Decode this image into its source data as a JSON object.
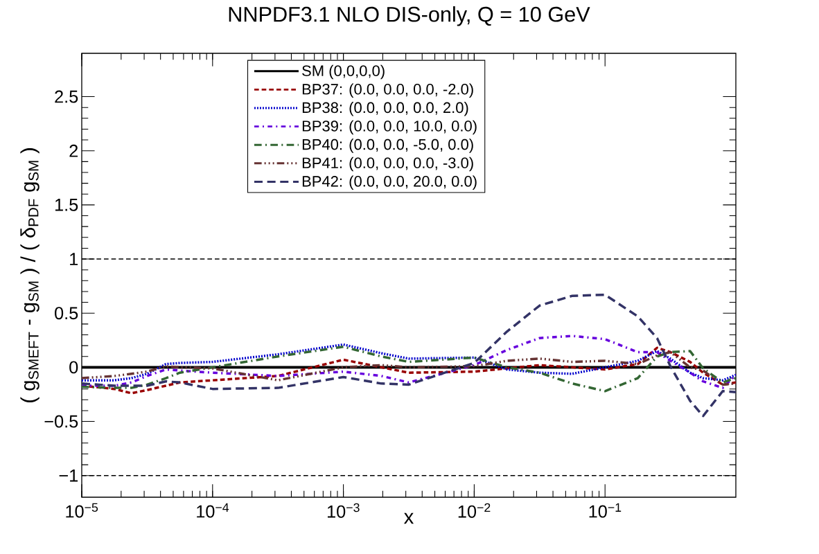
{
  "chart_data": {
    "type": "line",
    "title": "NNPDF3.1 NLO DIS-only, Q = 10 GeV",
    "xlabel": "x",
    "ylabel": "( g$_{SMEFT}$ - g$_{SM}$ ) / ( δ$_{PDF}$ g$_{SM}$ )",
    "log": "x",
    "xlim": [
      1e-05,
      1
    ],
    "ylim": [
      -1.2,
      2.9
    ],
    "xticks": [
      {
        "value": 1e-05,
        "label": "10$^{−5}$"
      },
      {
        "value": 0.0001,
        "label": "10$^{−4}$"
      },
      {
        "value": 0.001,
        "label": "10$^{−3}$"
      },
      {
        "value": 0.01,
        "label": "10$^{−2}$"
      },
      {
        "value": 0.1,
        "label": "10$^{−1}$"
      }
    ],
    "yticks": [
      {
        "value": -1,
        "label": "−1"
      },
      {
        "value": -0.5,
        "label": "−0.5"
      },
      0,
      0.5,
      1,
      1.5,
      2,
      2.5
    ],
    "grid": false,
    "legend": "top",
    "marker": "none",
    "x": [
      1e-05,
      1.78e-05,
      2.4e-05,
      3.16e-05,
      4.4e-05,
      5.62e-05,
      0.0001,
      0.000316,
      0.001,
      0.00195,
      0.00316,
      0.01,
      0.0178,
      0.0316,
      0.0562,
      0.1,
      0.178,
      0.25,
      0.316,
      0.447,
      0.562,
      0.794,
      1.0
    ],
    "ref_lines": [
      {
        "axis": "y",
        "value": 1,
        "color": "#000000",
        "line_style": "dashed"
      },
      {
        "axis": "y",
        "value": -1,
        "color": "#000000",
        "line_style": "dashed"
      }
    ],
    "series": [
      {
        "name": "SM (0,0,0,0)",
        "color": "#000000",
        "line_style": "solid",
        "x": [
          1e-05,
          1.0
        ],
        "values": [
          0,
          0
        ]
      },
      {
        "name": "BP37: (0.0, 0.0, 0.0, -2.0)",
        "color": "#990000",
        "line_style": "dashed",
        "values": [
          -0.17,
          -0.2,
          -0.24,
          -0.21,
          -0.17,
          -0.14,
          -0.12,
          -0.08,
          0.07,
          0,
          -0.05,
          -0.04,
          -0.01,
          0.02,
          0,
          -0.02,
          0.03,
          0.18,
          0.14,
          0.05,
          -0.05,
          -0.16,
          -0.14
        ]
      },
      {
        "name": "BP38: (0.0, 0.0, 0.0, 2.0)",
        "color": "#0000cc",
        "line_style": "dotted",
        "values": [
          -0.12,
          -0.12,
          -0.1,
          -0.06,
          0.03,
          0.04,
          0.05,
          0.12,
          0.21,
          0.13,
          0.08,
          0.09,
          -0.02,
          -0.05,
          -0.06,
          0,
          0.06,
          0.15,
          0.08,
          -0.05,
          -0.1,
          -0.12,
          -0.07
        ]
      },
      {
        "name": "BP39: (0.0, 0.0, 10.0, 0.0)",
        "color": "#6600dd",
        "line_style": "dashdot",
        "values": [
          -0.17,
          -0.17,
          -0.14,
          -0.08,
          -0.02,
          -0.03,
          -0.05,
          -0.08,
          -0.04,
          -0.08,
          -0.14,
          0.02,
          0.16,
          0.27,
          0.29,
          0.26,
          0.14,
          0.14,
          0.06,
          -0.05,
          -0.13,
          -0.19,
          -0.07
        ]
      },
      {
        "name": "BP40: (0.0, 0.0, -5.0, 0.0)",
        "color": "#336633",
        "line_style": "longdashdot",
        "values": [
          -0.18,
          -0.19,
          -0.19,
          -0.16,
          -0.1,
          -0.05,
          0,
          0.1,
          0.19,
          0.1,
          0.05,
          0.09,
          0,
          -0.05,
          -0.15,
          -0.22,
          -0.1,
          0.1,
          0.14,
          0.15,
          -0.01,
          -0.14,
          -0.1
        ]
      },
      {
        "name": "BP41: (0.0, 0.0, 0.0, -3.0)",
        "color": "#663333",
        "line_style": "dashdotdot",
        "values": [
          -0.1,
          -0.08,
          -0.06,
          -0.04,
          0.01,
          0,
          -0.01,
          -0.12,
          0,
          0.02,
          0,
          0.01,
          0.06,
          0.08,
          0.05,
          0.06,
          0.03,
          0.11,
          0.14,
          0,
          -0.03,
          -0.16,
          -0.15
        ]
      },
      {
        "name": "BP42: (0.0, 0.0, 20.0, 0.0)",
        "color": "#333366",
        "line_style": "longdashed",
        "values": [
          -0.15,
          -0.17,
          -0.17,
          -0.17,
          -0.13,
          -0.14,
          -0.2,
          -0.19,
          -0.09,
          -0.15,
          -0.16,
          0.04,
          0.33,
          0.57,
          0.66,
          0.67,
          0.47,
          0.27,
          0.01,
          -0.31,
          -0.45,
          -0.22,
          -0.23
        ]
      }
    ]
  }
}
